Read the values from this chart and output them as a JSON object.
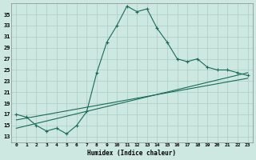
{
  "xlabel": "Humidex (Indice chaleur)",
  "bg_color": "#cce8e0",
  "grid_color": "#aaccc4",
  "line_color": "#1a6b5a",
  "xlim": [
    -0.5,
    23.5
  ],
  "ylim": [
    12,
    37
  ],
  "yticks": [
    13,
    15,
    17,
    19,
    21,
    23,
    25,
    27,
    29,
    31,
    33,
    35
  ],
  "xticks": [
    0,
    1,
    2,
    3,
    4,
    5,
    6,
    7,
    8,
    9,
    10,
    11,
    12,
    13,
    14,
    15,
    16,
    17,
    18,
    19,
    20,
    21,
    22,
    23
  ],
  "line1_x": [
    0,
    1,
    2,
    3,
    4,
    5,
    6,
    7,
    8,
    9,
    10,
    11,
    12,
    13,
    14,
    15,
    16,
    17,
    18,
    19,
    20,
    21,
    22,
    23
  ],
  "line1_y": [
    17.0,
    16.5,
    15.0,
    14.0,
    14.5,
    13.5,
    15.0,
    17.5,
    24.5,
    30.0,
    33.0,
    36.5,
    35.5,
    36.0,
    32.5,
    30.0,
    27.0,
    26.5,
    27.0,
    25.5,
    25.0,
    25.0,
    24.5,
    24.0
  ],
  "line2_x": [
    0,
    23
  ],
  "line2_y": [
    14.5,
    24.5
  ],
  "line3_x": [
    0,
    23
  ],
  "line3_y": [
    16.0,
    23.5
  ]
}
